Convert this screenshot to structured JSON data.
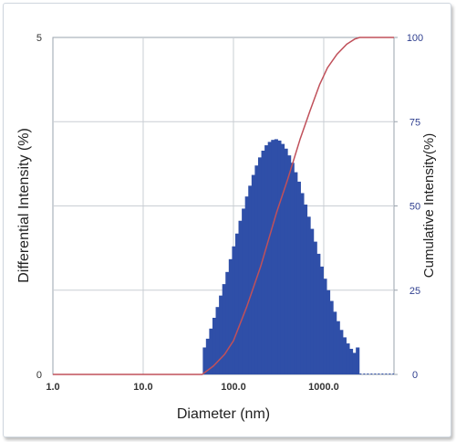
{
  "chart_data": {
    "type": "bar",
    "xlabel": "Diameter (nm)",
    "ylabel_left": "Differential Intensity (%)",
    "ylabel_right": "Cumulative Intensity(%)",
    "x_scale": "log",
    "xlim": [
      1.0,
      6000.0
    ],
    "ylim_left": [
      0,
      5
    ],
    "ylim_right": [
      0,
      100
    ],
    "x_ticks": [
      "1.0",
      "10.0",
      "100.0",
      "1000.0"
    ],
    "y_ticks_left": [
      "0",
      "5"
    ],
    "y_ticks_right": [
      "0",
      "25",
      "50",
      "75",
      "100"
    ],
    "grid": true,
    "colors": {
      "bars": "#2f4fa8",
      "cumulative": "#c0505a",
      "right_axis_text": "#2f3f8f"
    },
    "series": [
      {
        "name": "Differential Intensity",
        "axis": "left",
        "type": "bar",
        "x": [
          48.0,
          52.0,
          56.5,
          61.4,
          66.7,
          72.5,
          78.8,
          85.6,
          93.0,
          101.1,
          109.8,
          119.3,
          129.7,
          140.9,
          153.1,
          166.4,
          180.8,
          196.5,
          213.5,
          232.0,
          252.1,
          274.0,
          297.7,
          323.5,
          351.6,
          382.0,
          415.1,
          451.1,
          490.2,
          532.7,
          578.8,
          629.0,
          683.5,
          742.7,
          807.1,
          877.0,
          953.0,
          1035.6,
          1125.3,
          1222.8,
          1328.8,
          1444.0,
          1569.1,
          1705.1,
          1852.9,
          2013.4,
          2188.0,
          2377.6
        ],
        "values": [
          0.4,
          0.53,
          0.68,
          0.84,
          1.0,
          1.17,
          1.34,
          1.52,
          1.71,
          1.9,
          2.09,
          2.28,
          2.46,
          2.64,
          2.8,
          2.96,
          3.1,
          3.22,
          3.32,
          3.4,
          3.45,
          3.48,
          3.49,
          3.47,
          3.42,
          3.35,
          3.25,
          3.14,
          3.0,
          2.86,
          2.69,
          2.52,
          2.34,
          2.16,
          1.97,
          1.79,
          1.6,
          1.42,
          1.25,
          1.09,
          0.93,
          0.79,
          0.66,
          0.55,
          0.46,
          0.38,
          0.32,
          0.4
        ]
      },
      {
        "name": "Cumulative Intensity",
        "axis": "right",
        "type": "line",
        "x": [
          1.0,
          45.0,
          60.0,
          80.0,
          100.0,
          140.0,
          200.0,
          300.0,
          400.0,
          550.0,
          700.0,
          900.0,
          1100.0,
          1400.0,
          1800.0,
          2200.0,
          2500.0,
          6000.0
        ],
        "values": [
          0.0,
          0.0,
          2.5,
          6.0,
          10.0,
          20.0,
          32.0,
          48.0,
          58.0,
          70.0,
          78.0,
          86.0,
          91.0,
          95.0,
          98.0,
          99.5,
          100.0,
          100.0
        ]
      }
    ]
  }
}
